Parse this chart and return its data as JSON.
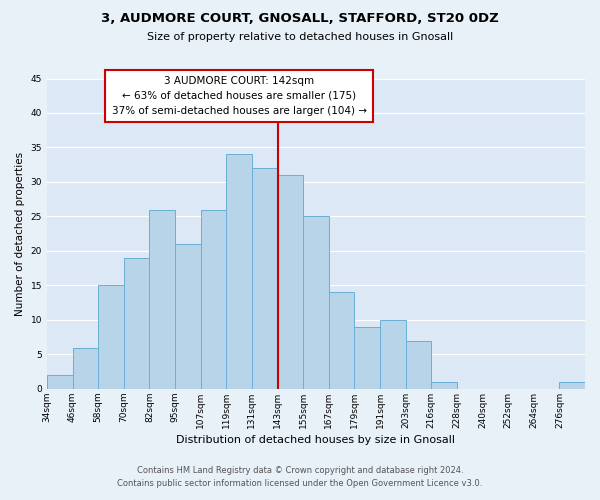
{
  "title_line1": "3, AUDMORE COURT, GNOSALL, STAFFORD, ST20 0DZ",
  "title_line2": "Size of property relative to detached houses in Gnosall",
  "xlabel": "Distribution of detached houses by size in Gnosall",
  "ylabel": "Number of detached properties",
  "footer_line1": "Contains HM Land Registry data © Crown copyright and database right 2024.",
  "footer_line2": "Contains public sector information licensed under the Open Government Licence v3.0.",
  "bin_labels": [
    "34sqm",
    "46sqm",
    "58sqm",
    "70sqm",
    "82sqm",
    "95sqm",
    "107sqm",
    "119sqm",
    "131sqm",
    "143sqm",
    "155sqm",
    "167sqm",
    "179sqm",
    "191sqm",
    "203sqm",
    "216sqm",
    "228sqm",
    "240sqm",
    "252sqm",
    "264sqm",
    "276sqm"
  ],
  "bin_values": [
    2,
    6,
    15,
    19,
    26,
    21,
    26,
    34,
    32,
    31,
    25,
    14,
    9,
    10,
    7,
    1,
    0,
    0,
    0,
    0,
    1
  ],
  "bar_color": "#b8d4e8",
  "bar_edge_color": "#6aaed6",
  "highlight_line_idx": 9,
  "highlight_line_color": "#cc0000",
  "annotation_text_line1": "3 AUDMORE COURT: 142sqm",
  "annotation_text_line2": "← 63% of detached houses are smaller (175)",
  "annotation_text_line3": "37% of semi-detached houses are larger (104) →",
  "annotation_box_edgecolor": "#cc0000",
  "annotation_box_facecolor": "#ffffff",
  "ylim": [
    0,
    45
  ],
  "background_color": "#e8f0f8",
  "plot_background_color": "#dce8f5",
  "title_fontsize": 9.5,
  "subtitle_fontsize": 8,
  "ylabel_fontsize": 7.5,
  "xlabel_fontsize": 8,
  "tick_fontsize": 6.5,
  "footer_fontsize": 6,
  "annotation_fontsize": 7.5
}
